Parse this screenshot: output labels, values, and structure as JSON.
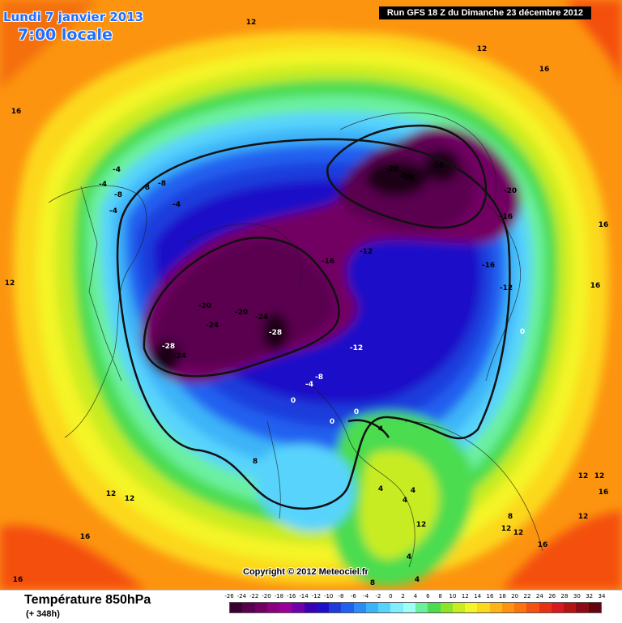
{
  "header": {
    "date_line": "Lundi 7 janvier 2013",
    "time_line": "7:00 locale",
    "run_info": "Run GFS 18 Z du Dimanche 23 décembre 2012"
  },
  "copyright": "Copyright © 2012 Meteociel.fr",
  "footer": {
    "title": "Température 850hPa",
    "forecast_hour": "(+ 348h)"
  },
  "legend": {
    "labels": [
      "-26",
      "-24",
      "-22",
      "-20",
      "-18",
      "-16",
      "-14",
      "-12",
      "-10",
      "-8",
      "-6",
      "-4",
      "-2",
      "0",
      "2",
      "4",
      "6",
      "8",
      "10",
      "12",
      "14",
      "16",
      "18",
      "20",
      "22",
      "24",
      "26",
      "28",
      "30",
      "32",
      "34"
    ],
    "colors": [
      "#3a0030",
      "#5a0050",
      "#720064",
      "#8a0080",
      "#9c009c",
      "#7000a8",
      "#3a00b4",
      "#1e10c8",
      "#1e3cdc",
      "#2060f0",
      "#2c8cf4",
      "#3cb4f8",
      "#58d4fc",
      "#80ecff",
      "#a0fff4",
      "#6cf0a0",
      "#4cdc50",
      "#8ce428",
      "#c8ec20",
      "#f4f428",
      "#fcd81c",
      "#fcb418",
      "#fc9410",
      "#fc7410",
      "#f45010",
      "#e83014",
      "#d41c1c",
      "#b41414",
      "#8c0c14",
      "#640410"
    ]
  },
  "map": {
    "contour_color": "#111111",
    "labels": [
      {
        "text": "-28",
        "color": "#000000"
      },
      {
        "text": "-24",
        "color": "#000000"
      },
      {
        "text": "-28",
        "color": "#000000"
      },
      {
        "text": "-20",
        "color": "#000000"
      },
      {
        "text": "-20",
        "color": "#000000"
      },
      {
        "text": "-16",
        "color": "#000000"
      },
      {
        "text": "-16",
        "color": "#000000"
      },
      {
        "text": "-12",
        "color": "#000000"
      },
      {
        "text": "-16",
        "color": "#000000"
      },
      {
        "text": "-12",
        "color": "#000000"
      },
      {
        "text": "0",
        "color": "#ffffff"
      },
      {
        "text": "-20",
        "color": "#000000"
      },
      {
        "text": "-24",
        "color": "#000000"
      },
      {
        "text": "-20",
        "color": "#000000"
      },
      {
        "text": "-24",
        "color": "#000000"
      },
      {
        "text": "-28",
        "color": "#ffffff"
      },
      {
        "text": "-28",
        "color": "#ffffff"
      },
      {
        "text": "-24",
        "color": "#000000"
      },
      {
        "text": "-12",
        "color": "#ffffff"
      },
      {
        "text": "-8",
        "color": "#ffffff"
      },
      {
        "text": "-4",
        "color": "#ffffff"
      },
      {
        "text": "0",
        "color": "#ffffff"
      },
      {
        "text": "0",
        "color": "#ffffff"
      },
      {
        "text": "0",
        "color": "#ffffff"
      },
      {
        "text": "4",
        "color": "#000000"
      },
      {
        "text": "8",
        "color": "#000000"
      },
      {
        "text": "4",
        "color": "#000000"
      },
      {
        "text": "4",
        "color": "#000000"
      },
      {
        "text": "4",
        "color": "#000000"
      },
      {
        "text": "-4",
        "color": "#000000"
      },
      {
        "text": "-8",
        "color": "#000000"
      },
      {
        "text": "-8",
        "color": "#000000"
      },
      {
        "text": "-8",
        "color": "#000000"
      },
      {
        "text": "-4",
        "color": "#000000"
      },
      {
        "text": "-4",
        "color": "#000000"
      },
      {
        "text": "-4",
        "color": "#000000"
      },
      {
        "text": "12",
        "color": "#000000"
      },
      {
        "text": "12",
        "color": "#000000"
      },
      {
        "text": "16",
        "color": "#000000"
      },
      {
        "text": "12",
        "color": "#000000"
      },
      {
        "text": "12",
        "color": "#000000"
      },
      {
        "text": "16",
        "color": "#000000"
      },
      {
        "text": "16",
        "color": "#000000"
      },
      {
        "text": "16",
        "color": "#000000"
      },
      {
        "text": "12",
        "color": "#000000"
      },
      {
        "text": "12",
        "color": "#000000"
      },
      {
        "text": "12",
        "color": "#000000"
      },
      {
        "text": "16",
        "color": "#000000"
      },
      {
        "text": "8",
        "color": "#000000"
      },
      {
        "text": "8",
        "color": "#000000"
      },
      {
        "text": "12",
        "color": "#000000"
      },
      {
        "text": "16",
        "color": "#000000"
      },
      {
        "text": "12",
        "color": "#000000"
      },
      {
        "text": "16",
        "color": "#000000"
      },
      {
        "text": "12",
        "color": "#000000"
      },
      {
        "text": "4",
        "color": "#000000"
      },
      {
        "text": "4",
        "color": "#000000"
      },
      {
        "text": "16",
        "color": "#000000"
      },
      {
        "text": "12",
        "color": "#000000"
      }
    ]
  }
}
